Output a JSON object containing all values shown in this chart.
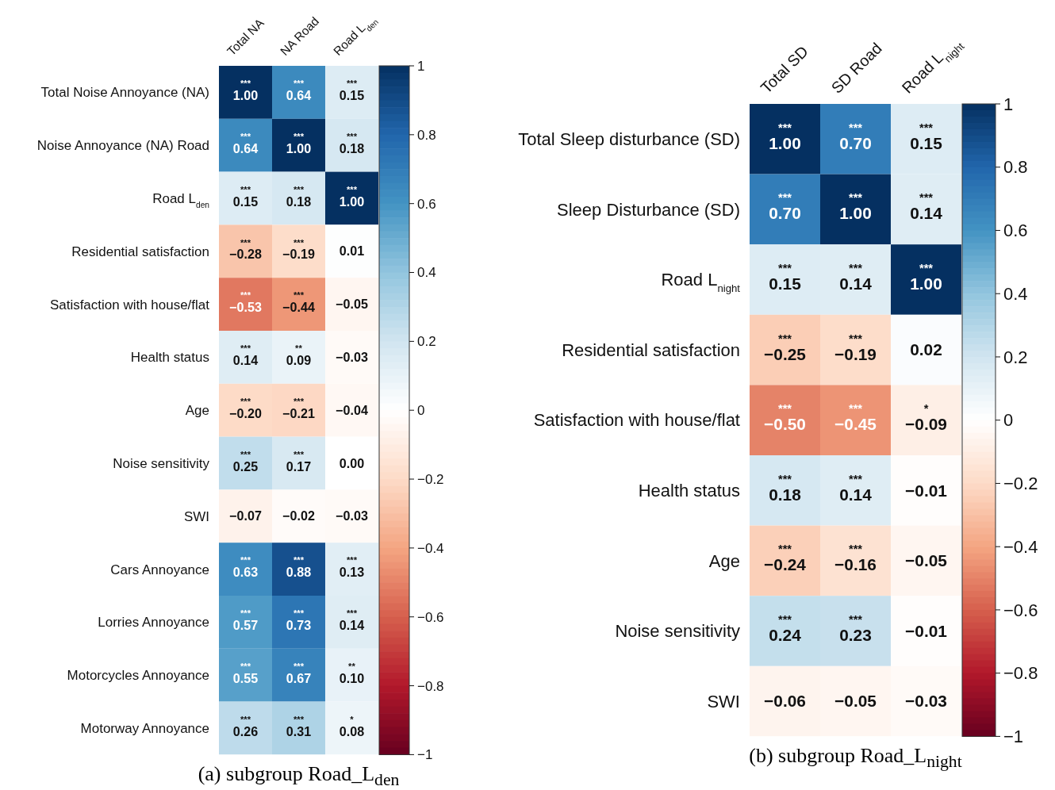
{
  "chart_data": [
    {
      "type": "heatmap",
      "title": "(a) subgroup Road_L$_{den}$",
      "categories": [
        "Total NA",
        "NA Road",
        "Road L$_{den}$"
      ],
      "y_categories": [
        "Total Noise Annoyance (NA)",
        "Noise Annoyance (NA) Road",
        "Road L$_{den}$",
        "Residential satisfaction",
        "Satisfaction with house/flat",
        "Health status",
        "Age",
        "Noise sensitivity",
        "SWI",
        "Cars Annoyance",
        "Lorries Annoyance",
        "Motorcycles Annoyance",
        "Motorway Annoyance"
      ],
      "cells": [
        [
          1.0,
          0.64,
          0.15
        ],
        [
          0.64,
          1.0,
          0.18
        ],
        [
          0.15,
          0.18,
          1.0
        ],
        [
          -0.28,
          -0.19,
          0.01
        ],
        [
          -0.53,
          -0.44,
          -0.05
        ],
        [
          0.14,
          0.09,
          -0.03
        ],
        [
          -0.2,
          -0.21,
          -0.04
        ],
        [
          0.25,
          0.17,
          0.0
        ],
        [
          -0.07,
          -0.02,
          -0.03
        ],
        [
          0.63,
          0.88,
          0.13
        ],
        [
          0.57,
          0.73,
          0.14
        ],
        [
          0.55,
          0.67,
          0.1
        ],
        [
          0.26,
          0.31,
          0.08
        ]
      ],
      "cell_labels": [
        [
          "***\n1.00",
          "***\n0.64",
          "***\n0.15"
        ],
        [
          "***\n0.64",
          "***\n1.00",
          "***\n0.18"
        ],
        [
          "***\n0.15",
          "***\n0.18",
          "***\n1.00"
        ],
        [
          "***\n−0.28",
          "***\n−0.19",
          "0.01"
        ],
        [
          "***\n−0.53",
          "***\n−0.44",
          "−0.05"
        ],
        [
          "***\n0.14",
          "**\n0.09",
          "−0.03"
        ],
        [
          "***\n−0.20",
          "***\n−0.21",
          "−0.04"
        ],
        [
          "***\n0.25",
          "***\n0.17",
          "0.00"
        ],
        [
          "−0.07",
          "−0.02",
          "−0.03"
        ],
        [
          "***\n0.63",
          "***\n0.88",
          "***\n0.13"
        ],
        [
          "***\n0.57",
          "***\n0.73",
          "***\n0.14"
        ],
        [
          "***\n0.55",
          "***\n0.67",
          "**\n0.10"
        ],
        [
          "***\n0.26",
          "***\n0.31",
          "*\n0.08"
        ]
      ],
      "clim": [
        -1,
        1
      ],
      "cticks": [
        {
          "value": 1,
          "label": "1"
        },
        0.8,
        0.6,
        0.4,
        0.2,
        {
          "value": 0,
          "label": "0"
        },
        {
          "value": -0.2,
          "label": "−0.2"
        },
        {
          "value": -0.4,
          "label": "−0.4"
        },
        {
          "value": -0.6,
          "label": "−0.6"
        },
        {
          "value": -0.8,
          "label": "−0.8"
        },
        {
          "value": -1,
          "label": "−1"
        }
      ]
    },
    {
      "type": "heatmap",
      "title": "(b) subgroup Road_L$_{night}$",
      "categories": [
        "Total SD",
        "SD Road",
        "Road L$_{night}$"
      ],
      "y_categories": [
        "Total Sleep disturbance (SD)",
        "Sleep Disturbance (SD)",
        "Road L$_{night}$",
        "Residential satisfaction",
        "Satisfaction with house/flat",
        "Health status",
        "Age",
        "Noise sensitivity",
        "SWI"
      ],
      "cells": [
        [
          1.0,
          0.7,
          0.15
        ],
        [
          0.7,
          1.0,
          0.14
        ],
        [
          0.15,
          0.14,
          1.0
        ],
        [
          -0.25,
          -0.19,
          0.02
        ],
        [
          -0.5,
          -0.45,
          -0.09
        ],
        [
          0.18,
          0.14,
          -0.01
        ],
        [
          -0.24,
          -0.16,
          -0.05
        ],
        [
          0.24,
          0.23,
          -0.01
        ],
        [
          -0.06,
          -0.05,
          -0.03
        ]
      ],
      "cell_labels": [
        [
          "***\n1.00",
          "***\n0.70",
          "***\n0.15"
        ],
        [
          "***\n0.70",
          "***\n1.00",
          "***\n0.14"
        ],
        [
          "***\n0.15",
          "***\n0.14",
          "***\n1.00"
        ],
        [
          "***\n−0.25",
          "***\n−0.19",
          "0.02"
        ],
        [
          "***\n−0.50",
          "***\n−0.45",
          "*\n−0.09"
        ],
        [
          "***\n0.18",
          "***\n0.14",
          "−0.01"
        ],
        [
          "***\n−0.24",
          "***\n−0.16",
          "−0.05"
        ],
        [
          "***\n0.24",
          "***\n0.23",
          "−0.01"
        ],
        [
          "−0.06",
          "−0.05",
          "−0.03"
        ]
      ],
      "clim": [
        -1,
        1
      ],
      "cticks": [
        {
          "value": 1,
          "label": "1"
        },
        0.8,
        0.6,
        0.4,
        0.2,
        {
          "value": 0,
          "label": "0"
        },
        {
          "value": -0.2,
          "label": "−0.2"
        },
        {
          "value": -0.4,
          "label": "−0.4"
        },
        {
          "value": -0.6,
          "label": "−0.6"
        },
        {
          "value": -0.8,
          "label": "−0.8"
        },
        {
          "value": -1,
          "label": "−1"
        }
      ]
    }
  ]
}
